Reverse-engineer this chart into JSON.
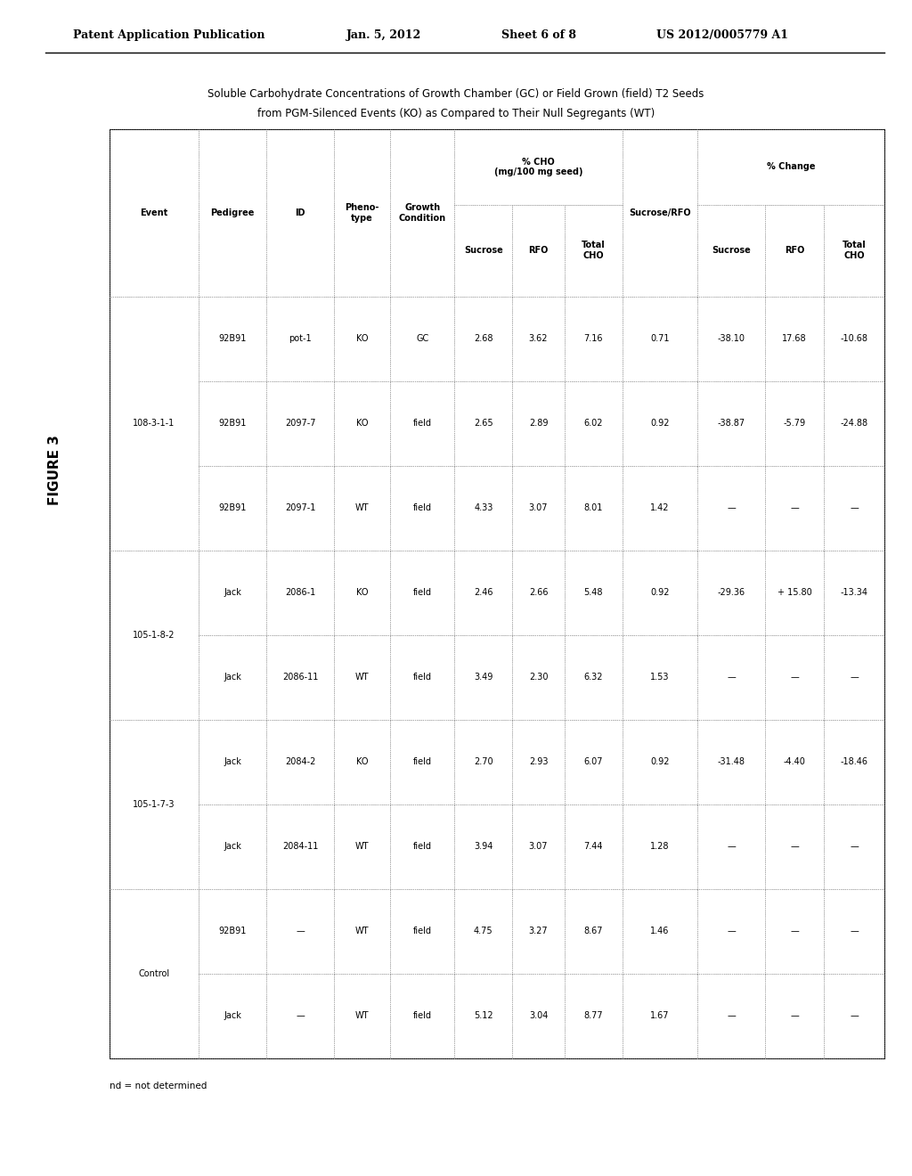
{
  "header_line1": "Patent Application Publication",
  "header_date": "Jan. 5, 2012",
  "header_sheet": "Sheet 6 of 8",
  "header_patent": "US 2012/0005779 A1",
  "figure_label": "FIGURE 3",
  "table_title_line1": "Soluble Carbohydrate Concentrations of Growth Chamber (GC) or Field Grown (field) T2 Seeds",
  "table_title_line2": "from PGM-Silenced Events (KO) as Compared to Their Null Segregants (WT)",
  "col_headers": [
    [
      "Event",
      "",
      ""
    ],
    [
      "Pedigree",
      "",
      ""
    ],
    [
      "ID",
      "",
      ""
    ],
    [
      "Pheno-\ntype",
      "",
      ""
    ],
    [
      "Growth\nCondition",
      "",
      ""
    ],
    [
      "% CHO\n(mg/100 mg seed)",
      "Sucrose",
      ""
    ],
    [
      "% CHO\n(mg/100 mg seed)",
      "RFO",
      ""
    ],
    [
      "% CHO\n(mg/100 mg seed)",
      "Total\nCHO",
      ""
    ],
    [
      "Sucrose/RFO",
      "",
      ""
    ],
    [
      "% Change",
      "Sucrose",
      ""
    ],
    [
      "% Change",
      "RFO",
      ""
    ],
    [
      "% Change",
      "Total\nCHO",
      ""
    ]
  ],
  "rows": [
    [
      "108-3-1-1",
      "92B91",
      "pot-1",
      "KO",
      "GC",
      "2.68",
      "3.62",
      "7.16",
      "0.71",
      "-38.10",
      "17.68",
      "-10.68"
    ],
    [
      "108-3-1-1",
      "92B91",
      "2097-7",
      "KO",
      "field",
      "2.65",
      "2.89",
      "6.02",
      "0.92",
      "-38.87",
      "-5.79",
      "-24.88"
    ],
    [
      "108-3-1-1",
      "92B91",
      "2097-1",
      "WT",
      "field",
      "4.33",
      "3.07",
      "8.01",
      "1.42",
      "—",
      "—",
      "—"
    ],
    [
      "105-1-8-2",
      "Jack",
      "2086-1",
      "KO",
      "field",
      "2.46",
      "2.66",
      "5.48",
      "0.92",
      "-29.36",
      "+ 15.80",
      "-13.34"
    ],
    [
      "105-1-8-2",
      "Jack",
      "2086-11",
      "WT",
      "field",
      "3.49",
      "2.30",
      "6.32",
      "1.53",
      "—",
      "—",
      "—"
    ],
    [
      "105-1-7-3",
      "Jack",
      "2084-2",
      "KO",
      "field",
      "2.70",
      "2.93",
      "6.07",
      "0.92",
      "-31.48",
      "-4.40",
      "-18.46"
    ],
    [
      "105-1-7-3",
      "Jack",
      "2084-11",
      "WT",
      "field",
      "3.94",
      "3.07",
      "7.44",
      "1.28",
      "—",
      "—",
      "—"
    ],
    [
      "Control",
      "92B91",
      "—",
      "WT",
      "field",
      "4.75",
      "3.27",
      "8.67",
      "1.46",
      "—",
      "—",
      "—"
    ],
    [
      "Control",
      "Jack",
      "—",
      "WT",
      "field",
      "5.12",
      "3.04",
      "8.77",
      "1.67",
      "—",
      "—",
      "—"
    ]
  ],
  "footnote": "nd = not determined",
  "bg_color": "#ffffff",
  "text_color": "#000000",
  "border_color": "#555555",
  "dotted_color": "#888888"
}
